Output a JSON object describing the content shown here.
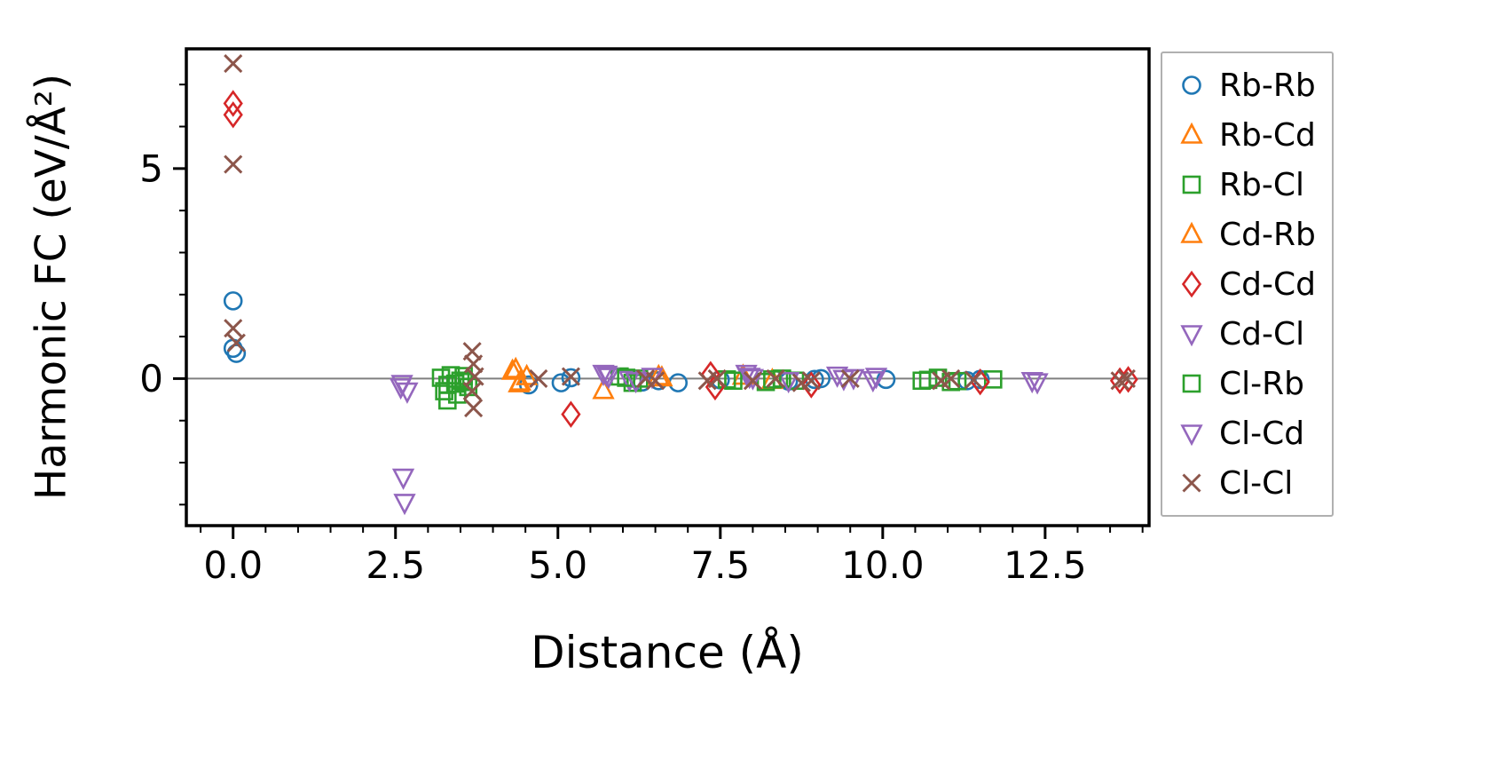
{
  "chart_data": {
    "type": "scatter",
    "title": "",
    "xlabel": "Distance (Å)",
    "ylabel": "Harmonic FC (eV/Å²)",
    "xlim": [
      -0.72,
      14.1
    ],
    "ylim": [
      -3.5,
      7.85
    ],
    "xticks": [
      0.0,
      2.5,
      5.0,
      7.5,
      10.0,
      12.5
    ],
    "xtick_labels": [
      "0.0",
      "2.5",
      "5.0",
      "7.5",
      "10.0",
      "12.5"
    ],
    "yticks": [
      0,
      5
    ],
    "ytick_labels": [
      "0",
      "5"
    ],
    "x_minor_step": 0.5,
    "y_minor_step": 1,
    "grid": false,
    "hline_y": 0,
    "hline_color": "#7f7f7f",
    "legend_position": "right",
    "series": [
      {
        "name": "Rb-Rb",
        "marker": "circle",
        "color": "#1f77b4",
        "points": [
          [
            0,
            1.85
          ],
          [
            0,
            0.72
          ],
          [
            0.05,
            0.6
          ],
          [
            4.55,
            -0.15
          ],
          [
            5.05,
            -0.1
          ],
          [
            5.2,
            0.02
          ],
          [
            6.3,
            -0.08
          ],
          [
            6.55,
            -0.05
          ],
          [
            6.85,
            -0.1
          ],
          [
            7.5,
            -0.03
          ],
          [
            8.55,
            -0.06
          ],
          [
            8.95,
            -0.02
          ],
          [
            9.05,
            0.0
          ],
          [
            10.05,
            -0.02
          ],
          [
            11.3,
            -0.05
          ],
          [
            11.5,
            -0.02
          ]
        ]
      },
      {
        "name": "Rb-Cd",
        "marker": "triangle-up",
        "color": "#ff7f0e",
        "points": [
          [
            4.3,
            0.18
          ],
          [
            4.42,
            -0.08
          ],
          [
            4.52,
            0.05
          ],
          [
            6.6,
            0.02
          ],
          [
            7.85,
            0.06
          ],
          [
            8.3,
            -0.04
          ]
        ]
      },
      {
        "name": "Rb-Cl",
        "marker": "square",
        "color": "#2ca02c",
        "points": [
          [
            3.2,
            0.02
          ],
          [
            3.25,
            -0.3
          ],
          [
            3.3,
            -0.52
          ],
          [
            3.35,
            0.08
          ],
          [
            3.42,
            -0.12
          ],
          [
            3.5,
            -0.05
          ],
          [
            3.55,
            0.06
          ],
          [
            3.62,
            -0.2
          ],
          [
            5.95,
            0.05
          ],
          [
            6.15,
            -0.1
          ],
          [
            6.25,
            0.0
          ],
          [
            7.6,
            -0.02
          ],
          [
            8.2,
            -0.08
          ],
          [
            8.45,
            0.0
          ],
          [
            8.65,
            -0.05
          ],
          [
            10.6,
            -0.05
          ],
          [
            10.85,
            0.02
          ],
          [
            11.05,
            -0.08
          ],
          [
            11.7,
            -0.02
          ]
        ]
      },
      {
        "name": "Cd-Rb",
        "marker": "triangle-up",
        "color": "#ff7f0e",
        "points": [
          [
            4.35,
            0.22
          ],
          [
            4.4,
            -0.12
          ],
          [
            5.7,
            -0.28
          ],
          [
            6.55,
            0.05
          ]
        ]
      },
      {
        "name": "Cd-Cd",
        "marker": "diamond",
        "color": "#d62728",
        "points": [
          [
            0,
            6.55
          ],
          [
            0,
            6.28
          ],
          [
            5.2,
            -0.85
          ],
          [
            7.35,
            0.1
          ],
          [
            7.42,
            -0.2
          ],
          [
            8.9,
            -0.15
          ],
          [
            11.5,
            -0.08
          ],
          [
            13.65,
            -0.05
          ],
          [
            13.78,
            -0.02
          ]
        ]
      },
      {
        "name": "Cd-Cl",
        "marker": "triangle-down",
        "color": "#9467bd",
        "points": [
          [
            2.6,
            -0.12
          ],
          [
            2.68,
            -0.3
          ],
          [
            2.62,
            -2.35
          ],
          [
            2.64,
            -2.95
          ],
          [
            5.7,
            0.12
          ],
          [
            5.78,
            0.05
          ],
          [
            6.1,
            -0.02
          ],
          [
            6.45,
            0.05
          ],
          [
            7.9,
            0.12
          ],
          [
            8.0,
            0.02
          ],
          [
            8.55,
            -0.05
          ],
          [
            9.3,
            0.08
          ],
          [
            9.55,
            0.02
          ],
          [
            9.85,
            -0.03
          ],
          [
            12.3,
            -0.05
          ]
        ]
      },
      {
        "name": "Cl-Rb",
        "marker": "square",
        "color": "#2ca02c",
        "points": [
          [
            3.3,
            -0.15
          ],
          [
            3.45,
            -0.38
          ],
          [
            3.55,
            -0.08
          ],
          [
            6.05,
            0.02
          ],
          [
            7.7,
            -0.05
          ],
          [
            8.3,
            -0.02
          ],
          [
            10.7,
            -0.03
          ],
          [
            11.15,
            -0.06
          ]
        ]
      },
      {
        "name": "Cl-Cd",
        "marker": "triangle-down",
        "color": "#9467bd",
        "points": [
          [
            2.58,
            -0.2
          ],
          [
            5.75,
            0.1
          ],
          [
            6.2,
            -0.05
          ],
          [
            7.95,
            0.05
          ],
          [
            9.4,
            0.0
          ],
          [
            9.9,
            0.05
          ],
          [
            12.38,
            -0.08
          ]
        ]
      },
      {
        "name": "Cl-Cl",
        "marker": "x",
        "color": "#8c564b",
        "points": [
          [
            0,
            7.5
          ],
          [
            0,
            5.1
          ],
          [
            0,
            1.2
          ],
          [
            0.05,
            0.85
          ],
          [
            3.68,
            0.65
          ],
          [
            3.7,
            0.35
          ],
          [
            3.72,
            0.05
          ],
          [
            3.68,
            -0.3
          ],
          [
            3.7,
            -0.7
          ],
          [
            4.7,
            0.0
          ],
          [
            5.2,
            0.05
          ],
          [
            6.35,
            0.0
          ],
          [
            6.5,
            -0.05
          ],
          [
            7.3,
            -0.05
          ],
          [
            7.45,
            0.0
          ],
          [
            8.0,
            -0.05
          ],
          [
            8.35,
            0.0
          ],
          [
            8.75,
            -0.1
          ],
          [
            8.9,
            -0.05
          ],
          [
            9.5,
            0.0
          ],
          [
            10.9,
            -0.05
          ],
          [
            11.05,
            0.0
          ],
          [
            11.4,
            -0.03
          ],
          [
            13.65,
            -0.05
          ],
          [
            13.75,
            0.0
          ]
        ]
      }
    ]
  }
}
